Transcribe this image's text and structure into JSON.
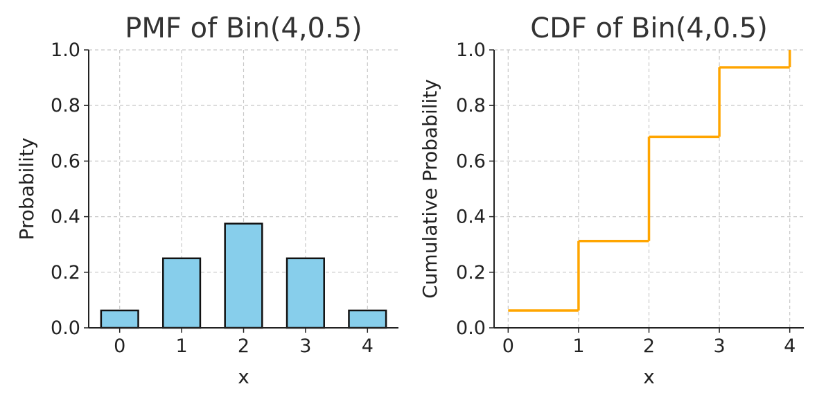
{
  "chart_data": [
    {
      "type": "bar",
      "title": "PMF of Bin(4,0.5)",
      "xlabel": "x",
      "ylabel": "Probability",
      "categories": [
        "0",
        "1",
        "2",
        "3",
        "4"
      ],
      "values": [
        0.0625,
        0.25,
        0.375,
        0.25,
        0.0625
      ],
      "ylim": [
        0,
        1.0
      ],
      "yticks": [
        "0.0",
        "0.2",
        "0.4",
        "0.6",
        "0.8",
        "1.0"
      ],
      "grid": true,
      "colors": {
        "bar_fill": "#87ceeb",
        "bar_edge": "#111111"
      }
    },
    {
      "type": "line",
      "step": "post",
      "title": "CDF of Bin(4,0.5)",
      "xlabel": "x",
      "ylabel": "Cumulative Probability",
      "x": [
        0,
        1,
        2,
        3,
        4
      ],
      "values": [
        0.0625,
        0.3125,
        0.6875,
        0.9375,
        1.0
      ],
      "xticks": [
        "0",
        "1",
        "2",
        "3",
        "4"
      ],
      "ylim": [
        0,
        1.0
      ],
      "yticks": [
        "0.0",
        "0.2",
        "0.4",
        "0.6",
        "0.8",
        "1.0"
      ],
      "grid": true,
      "colors": {
        "line": "#ffa500"
      }
    }
  ]
}
